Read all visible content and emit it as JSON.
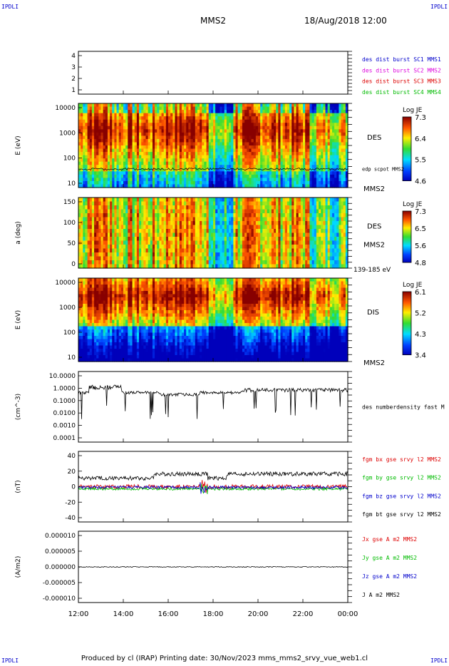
{
  "corner_label": "IPDLI",
  "header": {
    "title": "MMS2",
    "datetime": "18/Aug/2018 12:00"
  },
  "footer": {
    "text": "Produced by cl (IRAP)   Printing date: 30/Nov/2023   mms_mms2_srvy_vue_web1.cl"
  },
  "colors": {
    "red": "#dd0000",
    "green": "#00bb00",
    "blue": "#0000cc",
    "magenta": "#dd00dd"
  },
  "chart_data": [
    {
      "type": "line",
      "panel": "spacecraft",
      "yticks": [
        "4",
        "3",
        "2",
        "1"
      ],
      "legend": [
        {
          "label": "des dist burst SC1 MMS1",
          "color": "blue"
        },
        {
          "label": "des dist burst SC2 MMS2",
          "color": "magenta"
        },
        {
          "label": "des dist burst SC3 MMS3",
          "color": "red"
        },
        {
          "label": "des dist burst SC4 MMS4",
          "color": "green"
        }
      ]
    },
    {
      "type": "heatmap",
      "panel": "des-energy",
      "ylabel": "E (eV)",
      "yscale": "log",
      "ylim": [
        10,
        30000
      ],
      "yticks": [
        "10000",
        "1000",
        "100",
        "10"
      ],
      "label": "DES",
      "sublabel": "MMS2",
      "overlay": "edp scpot MMS2",
      "colorbar": {
        "title": "Log JE",
        "ticks": [
          "7.3",
          "6.4",
          "5.5",
          "4.6"
        ]
      }
    },
    {
      "type": "heatmap",
      "panel": "des-pitch",
      "ylabel": "a (deg)",
      "ylim": [
        0,
        180
      ],
      "yticks": [
        "150",
        "100",
        "50",
        "0"
      ],
      "label": "DES",
      "sublabel": "MMS2",
      "energy_range": "139-185 eV",
      "colorbar": {
        "title": "Log JE",
        "ticks": [
          "7.3",
          "6.5",
          "5.6",
          "4.8"
        ]
      }
    },
    {
      "type": "heatmap",
      "panel": "dis-energy",
      "ylabel": "E (eV)",
      "yscale": "log",
      "ylim": [
        10,
        30000
      ],
      "yticks": [
        "10000",
        "1000",
        "100",
        "10"
      ],
      "label": "DIS",
      "sublabel": "MMS2",
      "colorbar": {
        "title": "Log JE",
        "ticks": [
          "6.1",
          "5.2",
          "4.3",
          "3.4"
        ]
      }
    },
    {
      "type": "line",
      "panel": "density",
      "ylabel": "(cm^-3)",
      "yscale": "log",
      "ylim": [
        0.0001,
        10
      ],
      "yticks": [
        "10.0000",
        "1.0000",
        "0.1000",
        "0.0100",
        "0.0010",
        "0.0001"
      ],
      "series": [
        {
          "name": "des numberdensity fast M",
          "color": "black"
        }
      ]
    },
    {
      "type": "line",
      "panel": "magnetic-field",
      "ylabel": "(nT)",
      "ylim": [
        -50,
        50
      ],
      "yticks": [
        "40",
        "20",
        "0",
        "-20",
        "-40"
      ],
      "series": [
        {
          "name": "fgm bx gse srvy l2 MMS2",
          "color": "red"
        },
        {
          "name": "fgm by gse srvy l2 MMS2",
          "color": "green"
        },
        {
          "name": "fgm bz gse srvy l2 MMS2",
          "color": "blue"
        },
        {
          "name": "fgm bt gse srvy l2 MMS2",
          "color": "black"
        }
      ]
    },
    {
      "type": "line",
      "panel": "current",
      "ylabel": "(A/m2)",
      "ylim": [
        -1e-05,
        1e-05
      ],
      "yticks": [
        "0.000010",
        "0.000005",
        "0.000000",
        "-0.000005",
        "-0.000010"
      ],
      "series": [
        {
          "name": "Jx gse A m2 MMS2",
          "color": "red"
        },
        {
          "name": "Jy gse A m2 MMS2",
          "color": "green"
        },
        {
          "name": "Jz gse A m2 MMS2",
          "color": "blue"
        },
        {
          "name": "J A m2 MMS2",
          "color": "black"
        }
      ]
    }
  ],
  "time_axis": {
    "ticks": [
      "12:00",
      "14:00",
      "16:00",
      "18:00",
      "20:00",
      "22:00",
      "00:00"
    ]
  }
}
